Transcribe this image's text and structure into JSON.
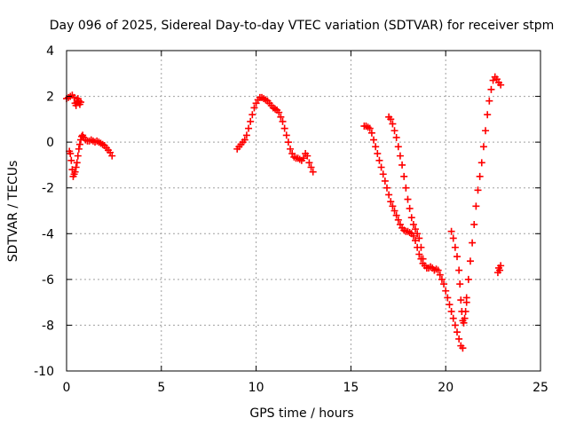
{
  "chart_data": {
    "type": "scatter",
    "title": "Day 096 of 2025, Sidereal Day-to-day VTEC variation (SDTVAR) for receiver stpm",
    "xlabel": "GPS time / hours",
    "ylabel": "SDTVAR / TECUs",
    "xlim": [
      0,
      25
    ],
    "ylim": [
      -10,
      4
    ],
    "xticks": [
      0,
      5,
      10,
      15,
      20,
      25
    ],
    "yticks": [
      -10,
      -8,
      -6,
      -4,
      -2,
      0,
      2,
      4
    ],
    "grid": true,
    "marker": "+",
    "color": "#ff0000",
    "series": [
      {
        "name": "seg-a",
        "x": [
          0.0,
          0.1,
          0.2,
          0.3,
          0.4,
          0.45,
          0.5,
          0.55,
          0.6,
          0.65,
          0.7,
          0.75
        ],
        "y": [
          1.9,
          1.95,
          2.0,
          2.05,
          1.95,
          1.7,
          1.6,
          1.75,
          1.9,
          1.8,
          1.65,
          1.75
        ]
      },
      {
        "name": "seg-b",
        "x": [
          0.15,
          0.2,
          0.25,
          0.3,
          0.35,
          0.4,
          0.45,
          0.5,
          0.55,
          0.6,
          0.65,
          0.7,
          0.75,
          0.8,
          0.85,
          0.9,
          1.0,
          1.1,
          1.2,
          1.3,
          1.4,
          1.5,
          1.6,
          1.7,
          1.8,
          1.9,
          2.0,
          2.1,
          2.2,
          2.3,
          2.4
        ],
        "y": [
          -0.4,
          -0.5,
          -0.8,
          -1.2,
          -1.5,
          -1.4,
          -1.3,
          -1.1,
          -0.9,
          -0.6,
          -0.3,
          -0.1,
          0.1,
          0.25,
          0.3,
          0.2,
          0.1,
          0.05,
          0.05,
          0.1,
          0.05,
          0.0,
          0.05,
          0.0,
          -0.05,
          -0.1,
          -0.15,
          -0.25,
          -0.35,
          -0.45,
          -0.6
        ]
      },
      {
        "name": "seg-c",
        "x": [
          9.0,
          9.1,
          9.2,
          9.3,
          9.4,
          9.5,
          9.6,
          9.7,
          9.8,
          9.9,
          10.0,
          10.1,
          10.2,
          10.3,
          10.4,
          10.5,
          10.6,
          10.7,
          10.8,
          10.9,
          11.0,
          11.1,
          11.2,
          11.3,
          11.4,
          11.5,
          11.6,
          11.7,
          11.8,
          11.9,
          12.0,
          12.1,
          12.2,
          12.3,
          12.4,
          12.5,
          12.6,
          12.7,
          12.8,
          12.9,
          13.0
        ],
        "y": [
          -0.3,
          -0.2,
          -0.1,
          0.0,
          0.1,
          0.3,
          0.6,
          0.9,
          1.2,
          1.5,
          1.7,
          1.85,
          1.95,
          1.95,
          1.9,
          1.85,
          1.8,
          1.7,
          1.6,
          1.5,
          1.45,
          1.4,
          1.3,
          1.1,
          0.9,
          0.6,
          0.3,
          0.0,
          -0.3,
          -0.5,
          -0.65,
          -0.7,
          -0.7,
          -0.75,
          -0.8,
          -0.7,
          -0.5,
          -0.6,
          -0.9,
          -1.1,
          -1.3
        ]
      },
      {
        "name": "seg-d",
        "x": [
          15.7,
          15.8,
          15.9,
          16.0,
          16.1,
          16.2,
          16.3,
          16.4,
          16.5,
          16.6,
          16.7,
          16.8,
          16.9,
          17.0,
          17.1,
          17.2,
          17.3,
          17.4,
          17.5,
          17.6,
          17.7,
          17.8,
          17.9,
          18.0,
          18.1,
          18.2,
          18.3,
          18.4,
          18.5,
          18.6,
          18.7,
          18.8,
          18.9,
          19.0,
          19.1,
          19.2,
          19.3,
          19.4,
          19.5,
          19.6,
          19.7,
          19.8,
          19.9,
          20.0,
          20.1,
          20.2,
          20.3,
          20.4,
          20.5,
          20.6,
          20.7,
          20.8,
          20.9
        ],
        "y": [
          0.7,
          0.7,
          0.65,
          0.6,
          0.4,
          0.1,
          -0.2,
          -0.5,
          -0.8,
          -1.1,
          -1.4,
          -1.7,
          -2.0,
          -2.3,
          -2.6,
          -2.8,
          -3.0,
          -3.2,
          -3.4,
          -3.6,
          -3.75,
          -3.85,
          -3.9,
          -3.9,
          -3.95,
          -4.0,
          -4.1,
          -4.3,
          -4.6,
          -4.9,
          -5.1,
          -5.3,
          -5.4,
          -5.5,
          -5.5,
          -5.45,
          -5.5,
          -5.6,
          -5.55,
          -5.6,
          -5.8,
          -6.0,
          -6.2,
          -6.5,
          -6.8,
          -7.1,
          -7.4,
          -7.7,
          -8.0,
          -8.3,
          -8.6,
          -8.9,
          -9.0
        ]
      },
      {
        "name": "seg-e",
        "x": [
          17.0,
          17.1,
          17.2,
          17.3,
          17.4,
          17.5,
          17.6,
          17.7,
          17.8,
          17.9,
          18.0,
          18.1,
          18.2,
          18.3,
          18.4,
          18.5,
          18.6,
          18.7,
          18.8
        ],
        "y": [
          1.1,
          1.0,
          0.8,
          0.5,
          0.2,
          -0.2,
          -0.6,
          -1.0,
          -1.5,
          -2.0,
          -2.5,
          -2.9,
          -3.3,
          -3.6,
          -3.8,
          -4.0,
          -4.2,
          -4.6,
          -5.1
        ]
      },
      {
        "name": "seg-f",
        "x": [
          20.3,
          20.4,
          20.5,
          20.6,
          20.7,
          20.75,
          20.8,
          20.85,
          20.9,
          20.95,
          21.0,
          21.05,
          21.1
        ],
        "y": [
          -3.9,
          -4.2,
          -4.6,
          -5.0,
          -5.6,
          -6.2,
          -6.9,
          -7.4,
          -7.8,
          -7.9,
          -7.7,
          -7.4,
          -7.0
        ]
      },
      {
        "name": "seg-g",
        "x": [
          21.1,
          21.2,
          21.3,
          21.4,
          21.5,
          21.6,
          21.7,
          21.8,
          21.9,
          22.0,
          22.1,
          22.2,
          22.3,
          22.4,
          22.5,
          22.6,
          22.7,
          22.8,
          22.9
        ],
        "y": [
          -6.8,
          -6.0,
          -5.2,
          -4.4,
          -3.6,
          -2.8,
          -2.1,
          -1.5,
          -0.9,
          -0.2,
          0.5,
          1.2,
          1.8,
          2.3,
          2.7,
          2.85,
          2.75,
          2.6,
          2.5
        ]
      },
      {
        "name": "seg-h",
        "x": [
          22.75,
          22.8,
          22.85,
          22.9
        ],
        "y": [
          -5.7,
          -5.5,
          -5.6,
          -5.4
        ]
      }
    ]
  }
}
